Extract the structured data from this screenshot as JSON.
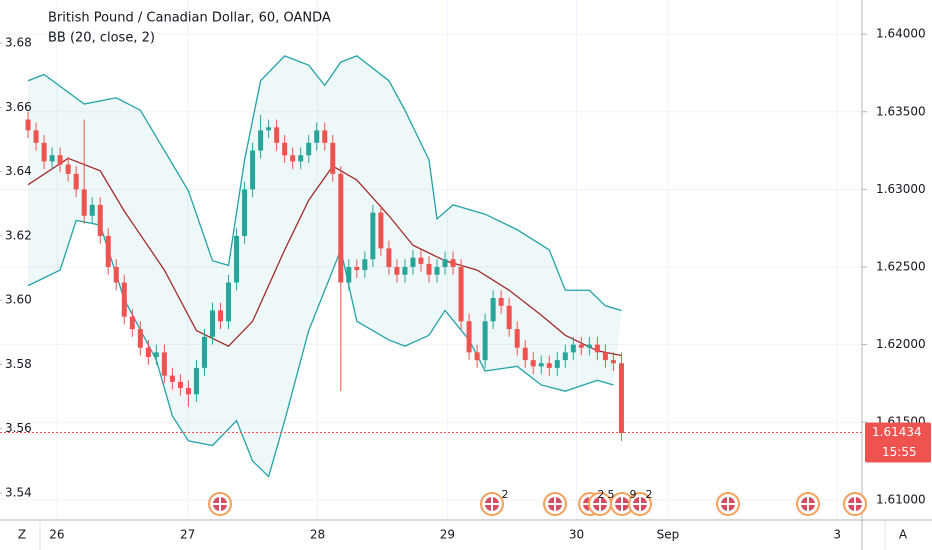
{
  "chart_data": {
    "type": "candlestick",
    "title": "British Pound / Canadian Dollar, 60, OANDA",
    "subtitle": "BB (20, close, 2)",
    "up_color": "#26a69a",
    "down_color": "#ef5350",
    "band_color": "#22a3a8",
    "basis_color": "#a52a2a",
    "open": [
      1.6345,
      1.6338,
      1.633,
      1.6318,
      1.6322,
      1.6316,
      1.631,
      1.63,
      1.6283,
      1.629,
      1.627,
      1.625,
      1.624,
      1.6218,
      1.621,
      1.6198,
      1.6192,
      1.6195,
      1.618,
      1.6176,
      1.6172,
      1.6168,
      1.6185,
      1.6205,
      1.6222,
      1.6215,
      1.624,
      1.627,
      1.63,
      1.6325,
      1.6338,
      1.634,
      1.633,
      1.6322,
      1.6318,
      1.6322,
      1.633,
      1.6338,
      1.633,
      1.631,
      1.624,
      1.625,
      1.6248,
      1.6255,
      1.6285,
      1.6262,
      1.625,
      1.6245,
      1.625,
      1.6256,
      1.6252,
      1.6245,
      1.625,
      1.6255,
      1.625,
      1.6215,
      1.6195,
      1.619,
      1.6215,
      1.623,
      1.6225,
      1.621,
      1.6198,
      1.619,
      1.6186,
      1.6188,
      1.6185,
      1.619,
      1.6195,
      1.62,
      1.6198,
      1.62,
      1.6195,
      1.619,
      1.6188
    ],
    "high": [
      1.635,
      1.6343,
      1.6335,
      1.6327,
      1.6327,
      1.6321,
      1.6315,
      1.6345,
      1.6295,
      1.6295,
      1.6275,
      1.6255,
      1.6245,
      1.6223,
      1.6215,
      1.6203,
      1.62,
      1.62,
      1.6185,
      1.6181,
      1.6177,
      1.619,
      1.621,
      1.6227,
      1.6227,
      1.6245,
      1.6275,
      1.6305,
      1.633,
      1.6348,
      1.6345,
      1.6345,
      1.6335,
      1.6327,
      1.6327,
      1.6335,
      1.6343,
      1.6343,
      1.6335,
      1.6315,
      1.6255,
      1.6255,
      1.626,
      1.629,
      1.629,
      1.6267,
      1.6255,
      1.6255,
      1.6261,
      1.6261,
      1.6257,
      1.6255,
      1.626,
      1.626,
      1.6255,
      1.622,
      1.62,
      1.622,
      1.6235,
      1.6235,
      1.623,
      1.6215,
      1.6203,
      1.6195,
      1.6193,
      1.6193,
      1.6195,
      1.62,
      1.6205,
      1.6205,
      1.6205,
      1.6205,
      1.62,
      1.6195,
      1.6195
    ],
    "low": [
      1.6333,
      1.6325,
      1.6313,
      1.6313,
      1.6311,
      1.6305,
      1.6295,
      1.6278,
      1.6278,
      1.6265,
      1.6245,
      1.6235,
      1.6213,
      1.6205,
      1.6193,
      1.6187,
      1.6187,
      1.6175,
      1.6171,
      1.6167,
      1.616,
      1.6163,
      1.618,
      1.62,
      1.621,
      1.621,
      1.6235,
      1.6265,
      1.6295,
      1.632,
      1.6333,
      1.6325,
      1.6317,
      1.6313,
      1.6313,
      1.6317,
      1.6325,
      1.6325,
      1.6305,
      1.617,
      1.6235,
      1.6243,
      1.6243,
      1.625,
      1.6257,
      1.6245,
      1.624,
      1.624,
      1.6245,
      1.6247,
      1.624,
      1.624,
      1.6245,
      1.6245,
      1.621,
      1.619,
      1.6185,
      1.6185,
      1.621,
      1.622,
      1.6205,
      1.6193,
      1.6185,
      1.6181,
      1.6181,
      1.618,
      1.618,
      1.6185,
      1.619,
      1.6193,
      1.6193,
      1.619,
      1.6185,
      1.6183,
      1.6138
    ],
    "close": [
      1.6338,
      1.633,
      1.6318,
      1.6322,
      1.6316,
      1.631,
      1.63,
      1.6283,
      1.629,
      1.627,
      1.625,
      1.624,
      1.6218,
      1.621,
      1.6198,
      1.6192,
      1.6195,
      1.618,
      1.6176,
      1.6172,
      1.6168,
      1.6185,
      1.6205,
      1.6222,
      1.6215,
      1.624,
      1.627,
      1.63,
      1.6325,
      1.6338,
      1.634,
      1.633,
      1.6322,
      1.6318,
      1.6322,
      1.633,
      1.6338,
      1.633,
      1.631,
      1.624,
      1.625,
      1.6248,
      1.6255,
      1.6285,
      1.6262,
      1.625,
      1.6245,
      1.625,
      1.6256,
      1.6252,
      1.6245,
      1.625,
      1.6255,
      1.625,
      1.6215,
      1.6195,
      1.619,
      1.6215,
      1.623,
      1.6225,
      1.621,
      1.6198,
      1.619,
      1.6186,
      1.6188,
      1.6185,
      1.619,
      1.6195,
      1.62,
      1.6198,
      1.62,
      1.6195,
      1.619,
      1.6188,
      1.6143
    ],
    "bb_upper": {
      "x": [
        0,
        2,
        7,
        11,
        14,
        17,
        20,
        23,
        25,
        27,
        29,
        32,
        35,
        37,
        39,
        41,
        45,
        47,
        50,
        51,
        53,
        57,
        61,
        65,
        67,
        70,
        72,
        74
      ],
      "values": [
        1.637,
        1.6374,
        1.6355,
        1.6359,
        1.6351,
        1.6325,
        1.6299,
        1.6254,
        1.6251,
        1.6319,
        1.637,
        1.6386,
        1.638,
        1.6367,
        1.6382,
        1.6386,
        1.637,
        1.6351,
        1.6319,
        1.6281,
        1.629,
        1.6284,
        1.6274,
        1.6261,
        1.6235,
        1.6235,
        1.6225,
        1.6222
      ]
    },
    "bb_basis": {
      "x": [
        0,
        5,
        9,
        12,
        17,
        21,
        25,
        28,
        32,
        35,
        38,
        41,
        45,
        48,
        52,
        56,
        60,
        64,
        67,
        71,
        74
      ],
      "values": [
        1.6303,
        1.632,
        1.6312,
        1.6286,
        1.6248,
        1.6209,
        1.6199,
        1.6215,
        1.6261,
        1.6293,
        1.6315,
        1.6306,
        1.6283,
        1.6264,
        1.6254,
        1.6248,
        1.6235,
        1.6219,
        1.6206,
        1.6196,
        1.6193
      ]
    },
    "bb_lower": {
      "x": [
        0,
        4,
        6,
        9,
        12,
        16,
        18,
        20,
        23,
        26,
        28,
        30,
        32,
        35,
        39,
        41,
        45,
        47,
        50,
        52,
        55,
        57,
        61,
        64,
        67,
        71,
        73
      ],
      "values": [
        1.6238,
        1.6248,
        1.628,
        1.6277,
        1.6229,
        1.619,
        1.6154,
        1.6138,
        1.6135,
        1.6151,
        1.6125,
        1.6115,
        1.6151,
        1.6209,
        1.6261,
        1.6215,
        1.6203,
        1.6199,
        1.6206,
        1.6222,
        1.6203,
        1.6183,
        1.6186,
        1.6174,
        1.617,
        1.6177,
        1.6174
      ]
    },
    "ylim": [
      1.6087,
      1.6422
    ],
    "yticks": [
      {
        "value": 1.61,
        "label": "1.61000"
      },
      {
        "value": 1.615,
        "label": "1.61500"
      },
      {
        "value": 1.62,
        "label": "1.62000"
      },
      {
        "value": 1.625,
        "label": "1.62500"
      },
      {
        "value": 1.63,
        "label": "1.63000"
      },
      {
        "value": 1.635,
        "label": "1.63500"
      },
      {
        "value": 1.64,
        "label": "1.64000"
      }
    ],
    "left_ylim": [
      3.5316,
      3.6934
    ],
    "left_yticks": [
      3.54,
      3.56,
      3.58,
      {
        "value": 3.6,
        "label": "3.60"
      },
      3.62,
      3.64,
      3.66,
      3.68
    ],
    "xlim": [
      -3.5,
      104
    ],
    "xticks": [
      {
        "value": 3.6,
        "label": "26"
      },
      {
        "value": 19.9,
        "label": "27"
      },
      {
        "value": 36.1,
        "label": "28"
      },
      {
        "value": 52.3,
        "label": "29"
      },
      {
        "value": 68.4,
        "label": "30"
      },
      {
        "value": 79.8,
        "label": "Sep"
      },
      {
        "value": 100.9,
        "label": "3"
      }
    ],
    "grid": true,
    "last_price": 1.61434,
    "countdown": "15:55",
    "event_labels": [
      "2",
      "2",
      "5",
      "9",
      "2"
    ],
    "corner_left": "Z",
    "corner_right": "A"
  }
}
